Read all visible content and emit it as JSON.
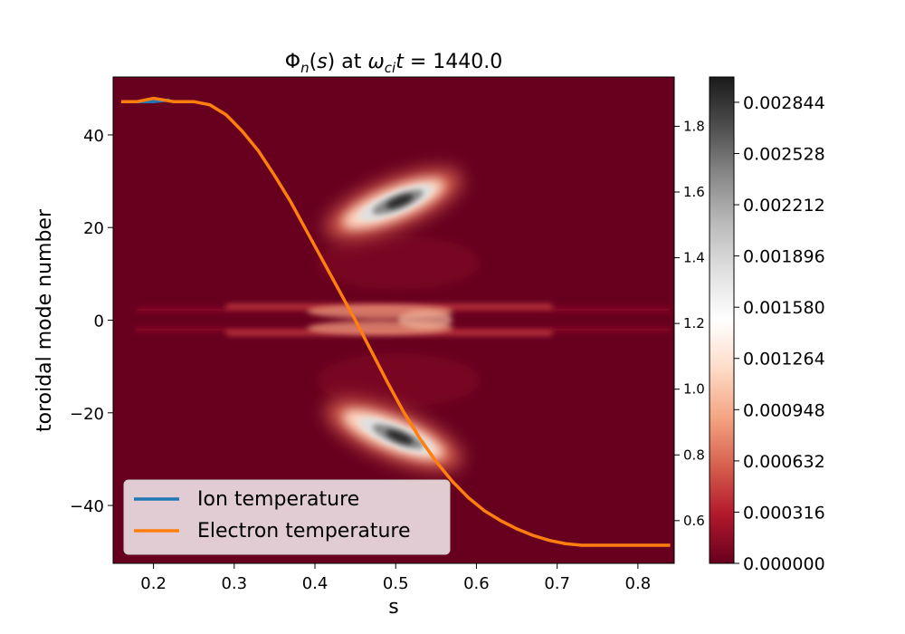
{
  "chart_data": {
    "type": "heatmap",
    "title": "Φn(s) at ωci t = 1440.0",
    "xlabel": "s",
    "ylabel": "toroidal mode number",
    "xlim": [
      0.15,
      0.845
    ],
    "ylim": [
      -52.5,
      52.5
    ],
    "x_ticks": [
      "0.2",
      "0.3",
      "0.4",
      "0.5",
      "0.6",
      "0.7",
      "0.8"
    ],
    "y_ticks": [
      "40",
      "20",
      "0",
      "−20",
      "−40"
    ],
    "right_axis": {
      "ylim": [
        0.47,
        1.95
      ],
      "ticks": [
        "0.6",
        "0.8",
        "1.0",
        "1.2",
        "1.4",
        "1.6",
        "1.8"
      ]
    },
    "colorbar": {
      "range": [
        0.0,
        0.003
      ],
      "tick_labels": [
        "0.000000",
        "0.000316",
        "0.000632",
        "0.000948",
        "0.001264",
        "0.001580",
        "0.001896",
        "0.002212",
        "0.002528",
        "0.002844"
      ],
      "colormap": "RdGy",
      "colors": [
        "#67001f",
        "#b2182b",
        "#d6604d",
        "#f4a582",
        "#fddbc7",
        "#ffffff",
        "#e0e0e0",
        "#bababa",
        "#878787",
        "#4d4d4d",
        "#1a1a1a"
      ]
    },
    "heatmap_features": [
      {
        "s": 0.5,
        "n": 26,
        "value": 0.0029
      },
      {
        "s": 0.5,
        "n": -26,
        "value": 0.0029
      },
      {
        "s": 0.45,
        "n": 0,
        "value": 0.0011
      }
    ],
    "series": [
      {
        "name": "Ion temperature",
        "color": "#1f77b4",
        "s": [
          0.16,
          0.18,
          0.2,
          0.22
        ],
        "T": [
          1.875,
          1.875,
          1.875,
          1.88
        ]
      },
      {
        "name": "Electron temperature",
        "color": "#ff7f0e",
        "s": [
          0.16,
          0.18,
          0.2,
          0.225,
          0.25,
          0.27,
          0.29,
          0.31,
          0.33,
          0.35,
          0.37,
          0.39,
          0.41,
          0.43,
          0.45,
          0.47,
          0.49,
          0.51,
          0.53,
          0.55,
          0.57,
          0.59,
          0.61,
          0.63,
          0.65,
          0.67,
          0.69,
          0.71,
          0.73,
          0.76,
          0.8,
          0.84
        ],
        "T": [
          1.875,
          1.875,
          1.885,
          1.875,
          1.875,
          1.865,
          1.835,
          1.785,
          1.725,
          1.65,
          1.57,
          1.48,
          1.39,
          1.3,
          1.21,
          1.115,
          1.02,
          0.93,
          0.85,
          0.78,
          0.72,
          0.67,
          0.63,
          0.6,
          0.575,
          0.555,
          0.54,
          0.53,
          0.525,
          0.525,
          0.525,
          0.525
        ]
      }
    ],
    "legend": {
      "placement": "lower-left",
      "entries": [
        "Ion temperature",
        "Electron temperature"
      ]
    }
  }
}
